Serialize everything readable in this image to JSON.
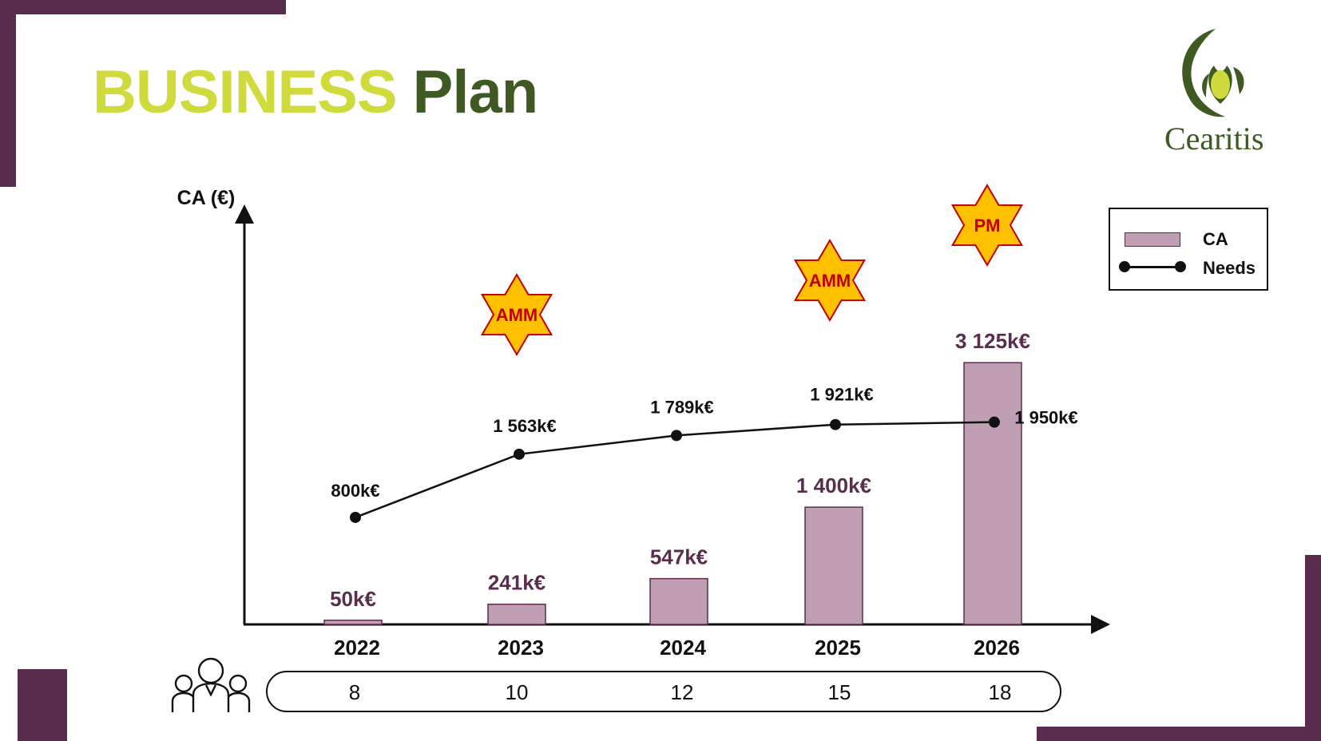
{
  "title": {
    "word1": "BUSINESS",
    "word2": "Plan"
  },
  "logo": {
    "name": "Cearitis"
  },
  "colors": {
    "accent_dark": "#5a2d4e",
    "title_lime": "#cfdb3c",
    "title_green": "#3e5a22",
    "bar_fill": "#c09fb4",
    "star_fill": "#ffc000",
    "star_text": "#c00000"
  },
  "chart_data": {
    "type": "bar",
    "ylabel": "CA (€)",
    "categories": [
      "2022",
      "2023",
      "2024",
      "2025",
      "2026"
    ],
    "series": [
      {
        "name": "CA",
        "type": "bar",
        "values": [
          50,
          241,
          547,
          1400,
          3125
        ],
        "labels": [
          "50k€",
          "241k€",
          "547k€",
          "1 400k€",
          "3 125k€"
        ]
      },
      {
        "name": "Needs",
        "type": "line",
        "values": [
          800,
          1563,
          1789,
          1921,
          1950
        ],
        "labels": [
          "800k€",
          "1 563k€",
          "1 789k€",
          "1 921k€",
          "1 950k€"
        ]
      }
    ],
    "annotations": [
      {
        "text": "AMM",
        "year": "2023",
        "shape": "star"
      },
      {
        "text": "AMM",
        "year": "2025",
        "shape": "star"
      },
      {
        "text": "PM",
        "year": "2026",
        "shape": "star"
      }
    ],
    "legend": {
      "position": "top-right",
      "entries": [
        "CA",
        "Needs"
      ]
    }
  },
  "staff": {
    "icon": "people-group-icon",
    "values": [
      "8",
      "10",
      "12",
      "15",
      "18"
    ]
  }
}
